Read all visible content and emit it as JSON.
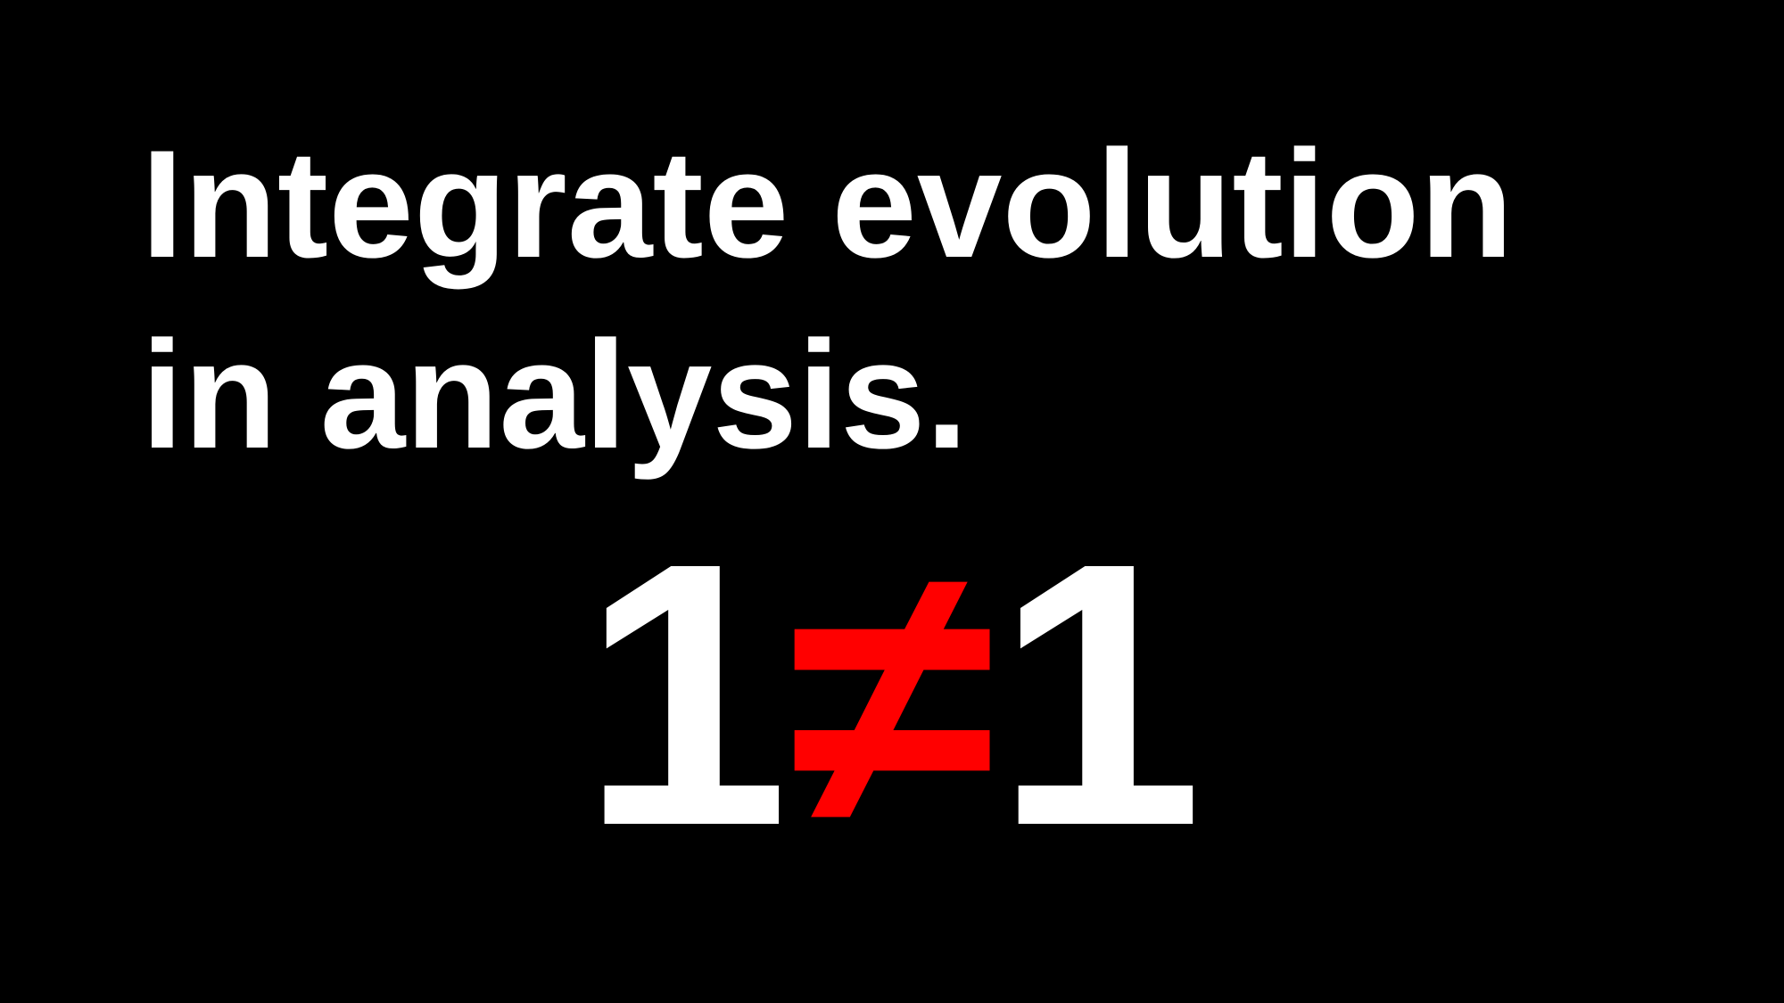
{
  "headline": {
    "line1": "Integrate evolution",
    "line2": "in analysis."
  },
  "equation": {
    "left": "1",
    "operator": "≠",
    "right": "1"
  },
  "colors": {
    "background": "#000000",
    "text": "#ffffff",
    "operator": "#ff0000"
  }
}
